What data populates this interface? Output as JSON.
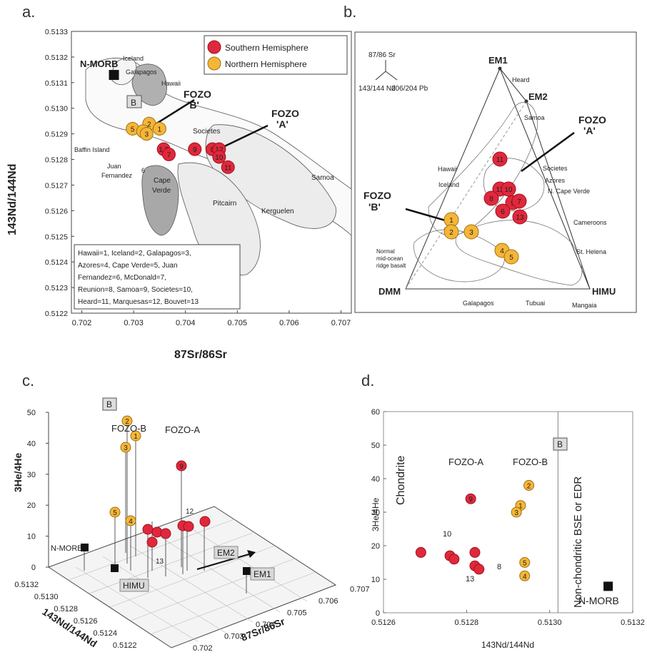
{
  "panels": {
    "a": {
      "letter": "a."
    },
    "b": {
      "letter": "b."
    },
    "c": {
      "letter": "c."
    },
    "d": {
      "letter": "d."
    }
  },
  "panel_a": {
    "ylabel": "143Nd/144Nd",
    "xlabel": "87Sr/86Sr",
    "yticks": [
      "0.5133",
      "0.5132",
      "0.5131",
      "0.5130",
      "0.5129",
      "0.5128",
      "0.5127",
      "0.5126",
      "0.5125",
      "0.5124",
      "0.5123",
      "0.5122"
    ],
    "xticks": [
      "0.702",
      "0.703",
      "0.704",
      "0.705",
      "0.706",
      "0.707"
    ],
    "legend": {
      "south": "Southern Hemisphere",
      "north": "Northern Hemisphere"
    },
    "labels": {
      "nmorb": "N-MORB",
      "iceland": "Iceland",
      "galapagos": "Galapagos",
      "hawaii": "Hawaii",
      "fozo_b": "FOZO",
      "fozo_b2": "'B'",
      "fozo_a": "FOZO",
      "fozo_a2": "'A'",
      "societes": "Societes",
      "baffin": "Baffin Island",
      "juan1": "Juan",
      "juan2": "Fernandez",
      "cape1": "Cape",
      "cape2": "Verde",
      "pitcairn": "Pitcairn",
      "kerguelen": "Kerguelen",
      "samoa": "Samoa",
      "b_box": "B",
      "six": "6"
    },
    "key_lines": [
      "Hawaii=1, Iceland=2, Galapagos=3,",
      "Azores=4, Cape Verde=5,  Juan",
      "Fernandez=6, McDonald=7,",
      "Reunion=8, Samoa=9, Societes=10,",
      "Heard=11, Marquesas=12, Bouvet=13"
    ],
    "points_north": [
      {
        "id": "5",
        "x": 0.70298,
        "y": 0.51292
      },
      {
        "id": "2",
        "x": 0.7033,
        "y": 0.51294
      },
      {
        "id": "1",
        "x": 0.7035,
        "y": 0.51292
      },
      {
        "id": "4",
        "x": 0.70318,
        "y": 0.51291
      },
      {
        "id": "3",
        "x": 0.70325,
        "y": 0.5129
      }
    ],
    "points_south": [
      {
        "id": "1 3",
        "x": 0.70358,
        "y": 0.51284
      },
      {
        "id": "7",
        "x": 0.70368,
        "y": 0.51282
      },
      {
        "id": "9",
        "x": 0.70418,
        "y": 0.51284
      },
      {
        "id": "8",
        "x": 0.70452,
        "y": 0.51284
      },
      {
        "id": "12",
        "x": 0.70465,
        "y": 0.51284
      },
      {
        "id": "10",
        "x": 0.70465,
        "y": 0.51281
      },
      {
        "id": "11",
        "x": 0.70482,
        "y": 0.51277
      }
    ],
    "nmorb": {
      "x": 0.70262,
      "y": 0.51313
    }
  },
  "panel_b": {
    "axis_top": "87/86 Sr",
    "axis_left": "143/144 Nd",
    "axis_right": "206/204 Pb",
    "labels": {
      "em1": "EM1",
      "em2": "EM2",
      "heard": "Heard",
      "samoa": "Samoa",
      "hawaii": "Hawaii",
      "iceland": "Iceland",
      "fozo_a": "FOZO",
      "fozo_a2": "'A'",
      "fozo_b": "FOZO",
      "fozo_b2": "'B'",
      "societes": "Societes",
      "azores": "Azores",
      "ncape": "N. Cape Verde",
      "cameroons": "Cameroons",
      "sthelena": "St. Helena",
      "dmm": "DMM",
      "himu": "HIMU",
      "galapagos": "Galapagos",
      "tubuai": "Tubuai",
      "mangaia": "Mangaia",
      "nmorb1": "Normal",
      "nmorb2": "mid-ocean",
      "nmorb3": "ridge basalt"
    },
    "points_north": [
      "1",
      "2",
      "3",
      "4",
      "5"
    ],
    "points_south": [
      "11",
      "12",
      "10",
      "8",
      "9",
      "6",
      "7",
      "13"
    ]
  },
  "panel_c": {
    "zlabel": "3He/4He",
    "xlabel": "87Sr/86Sr",
    "ylabel": "143Nd/144Nd",
    "zticks": [
      "50",
      "40",
      "30",
      "20",
      "10",
      "0"
    ],
    "xticks": [
      "0.702",
      "0.703",
      "0.704",
      "0.705",
      "0.706",
      "0.707"
    ],
    "yticks": [
      "0.5132",
      "0.5130",
      "0.5128",
      "0.5126",
      "0.5124",
      "0.5122"
    ],
    "labels": {
      "fozo_b": "FOZO-B",
      "fozo_a": "FOZO-A",
      "nmorb": "N-MORB",
      "himu": "HIMU",
      "em1": "EM1",
      "em2": "EM2",
      "b_box": "B",
      "twelve": "12",
      "thirteen": "13"
    },
    "points_north": [
      "2",
      "1",
      "3",
      "5",
      "4"
    ],
    "points_south": [
      "9"
    ]
  },
  "panel_d": {
    "ylabel": "3He/4He",
    "xlabel": "143Nd/144Nd",
    "yticks": [
      "60",
      "50",
      "40",
      "30",
      "20",
      "10",
      "0"
    ],
    "xticks": [
      "0.5126",
      "0.5128",
      "0.5130",
      "0.5132"
    ],
    "labels": {
      "chondrite": "Chondrite",
      "nonchondritic": "Non-chondritic BSE or EDR",
      "fozo_a": "FOZO-A",
      "fozo_b": "FOZO-B",
      "nmorb": "N-MORB",
      "b_box": "B",
      "ten": "10",
      "eight": "8",
      "thirteen": "13"
    },
    "points_north": [
      {
        "id": "2",
        "x": 0.51295,
        "y": 38
      },
      {
        "id": "1",
        "x": 0.51293,
        "y": 32
      },
      {
        "id": "3",
        "x": 0.51292,
        "y": 30
      },
      {
        "id": "5",
        "x": 0.51294,
        "y": 15
      },
      {
        "id": "4",
        "x": 0.51294,
        "y": 11
      }
    ],
    "points_south": [
      {
        "id": "9",
        "x": 0.51281,
        "y": 34
      },
      {
        "id": "",
        "x": 0.51269,
        "y": 18
      },
      {
        "id": "",
        "x": 0.51276,
        "y": 17
      },
      {
        "id": "",
        "x": 0.51277,
        "y": 16
      },
      {
        "id": "",
        "x": 0.51282,
        "y": 18
      },
      {
        "id": "",
        "x": 0.51282,
        "y": 14
      },
      {
        "id": "",
        "x": 0.51283,
        "y": 13
      }
    ],
    "nmorb": {
      "x": 0.51314,
      "y": 8
    }
  },
  "colors": {
    "red": "#e0283c",
    "orange": "#f5b638",
    "grey": "#9a9a9a",
    "lightgrey": "#e8e8e8"
  }
}
